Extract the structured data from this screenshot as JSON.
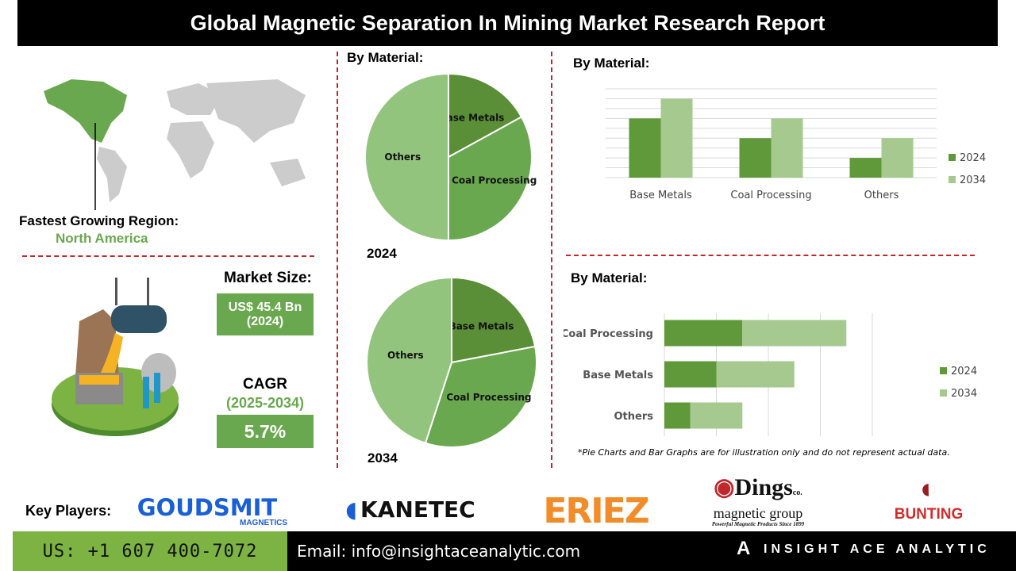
{
  "title": "Global Magnetic Separation In Mining Market Research Report",
  "region": {
    "label": "Fastest Growing Region:",
    "value": "North America"
  },
  "market_size": {
    "label": "Market Size:",
    "value": "US$ 45.4 Bn",
    "year": "(2024)"
  },
  "cagr": {
    "label": "CAGR",
    "period": "(2025-2034)",
    "value": "5.7%"
  },
  "colors": {
    "dark_green": "#609939",
    "light_green": "#a5c98f",
    "accent_red": "#c0282d",
    "box_green": "#6aa84f"
  },
  "chart_data": [
    {
      "type": "pie",
      "title": "By Material:",
      "caption": "2024",
      "categories": [
        "Base Metals",
        "Coal Processing",
        "Others"
      ],
      "values": [
        17,
        33,
        50
      ]
    },
    {
      "type": "pie",
      "caption": "2034",
      "categories": [
        "Base Metals",
        "Coal Processing",
        "Others"
      ],
      "values": [
        22,
        33,
        45
      ]
    },
    {
      "type": "bar",
      "title": "By Material:",
      "categories": [
        "Base Metals",
        "Coal Processing",
        "Others"
      ],
      "series": [
        {
          "name": "2024",
          "values": [
            6,
            4,
            2
          ]
        },
        {
          "name": "2034",
          "values": [
            8,
            6,
            4
          ]
        }
      ],
      "ylim": [
        0,
        9
      ],
      "grid": true,
      "legend": "right"
    },
    {
      "type": "bar",
      "orientation": "horizontal",
      "stacked": true,
      "title": "By Material:",
      "categories": [
        "Coal Processing",
        "Base Metals",
        "Others"
      ],
      "series": [
        {
          "name": "2024",
          "values": [
            1.5,
            1,
            0.5
          ]
        },
        {
          "name": "2034",
          "values": [
            2,
            1.5,
            1
          ]
        }
      ],
      "xlim": [
        0,
        4
      ],
      "grid": true,
      "legend": "right"
    }
  ],
  "disclaimer": "*Pie Charts and Bar Graphs are for illustration only and do not represent actual data.",
  "key_players": {
    "label": "Key Players:",
    "logos": [
      "GOUDSMIT",
      "MAGNETICS",
      "KANETEC",
      "ERIEZ",
      "Dings",
      "co.",
      "magnetic group",
      "Powerful Magnetic Products Since 1899",
      "BUNTING"
    ]
  },
  "footer": {
    "phone": "US: +1 607 400-7072",
    "email": "Email: info@insightaceanalytic.com",
    "brand": "INSIGHT ACE ANALYTIC"
  }
}
